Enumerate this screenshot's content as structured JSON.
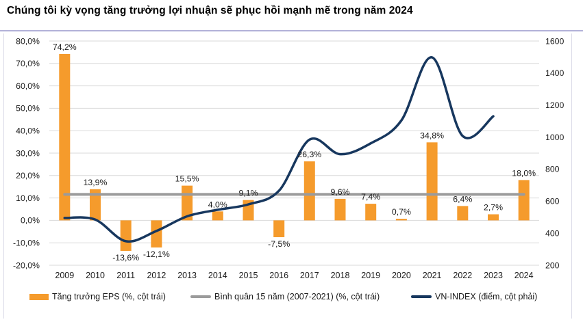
{
  "page": {
    "title": "Chúng tôi kỳ vọng tăng trưởng lợi nhuận sẽ phục hồi mạnh mẽ trong năm 2024"
  },
  "colors": {
    "eps_bar": "#f59b2c",
    "average_line": "#9b9b9b",
    "vnindex_line": "#17375e",
    "gridline": "#d9d9d9",
    "axis_text": "#1a1a1a",
    "divider": "#b2b1d8"
  },
  "chart_data": {
    "type": "bar",
    "subtype": "combo-bar-line-dual-axis",
    "title": "Chúng tôi kỳ vọng tăng trưởng lợi nhuận sẽ phục hồi mạnh mẽ trong năm 2024",
    "categories": [
      "2009",
      "2010",
      "2011",
      "2012",
      "2013",
      "2014",
      "2015",
      "2016",
      "2017",
      "2018",
      "2019",
      "2020",
      "2021",
      "2022",
      "2023",
      "2024"
    ],
    "series": [
      {
        "name": "Tăng trưởng EPS (%, cột trái)",
        "type": "bar",
        "axis": "left",
        "values": [
          74.2,
          13.9,
          -13.6,
          -12.1,
          15.5,
          4.0,
          9.1,
          -7.5,
          26.3,
          9.6,
          7.4,
          0.7,
          34.8,
          6.4,
          2.7,
          18.0
        ],
        "labels": [
          "74,2%",
          "13,9%",
          "-13,6%",
          "-12,1%",
          "15,5%",
          "4,0%",
          "9,1%",
          "-7,5%",
          "26,3%",
          "9,6%",
          "7,4%",
          "0,7%",
          "34,8%",
          "6,4%",
          "2,7%",
          "18,0%"
        ]
      },
      {
        "name": "Bình quân 15 năm (2007-2021) (%, cột trái)",
        "type": "horizontal-average-line",
        "axis": "left",
        "value": 11.6
      },
      {
        "name": "VN-INDEX (điểm, cột phải)",
        "type": "smooth-line",
        "axis": "right",
        "categories": [
          "2009",
          "2010",
          "2011",
          "2012",
          "2013",
          "2014",
          "2015",
          "2016",
          "2017",
          "2018",
          "2019",
          "2020",
          "2021",
          "2022",
          "2023"
        ],
        "values": [
          495,
          485,
          350,
          414,
          505,
          546,
          580,
          665,
          984,
          893,
          961,
          1104,
          1498,
          1007,
          1130
        ]
      }
    ],
    "left_axis": {
      "min": -20,
      "max": 80,
      "tick_step": 10,
      "unit": "%",
      "tick_labels": [
        "80,0%",
        "70,0%",
        "60,0%",
        "50,0%",
        "40,0%",
        "30,0%",
        "20,0%",
        "10,0%",
        "0,0%",
        "-10,0%",
        "-20,0%"
      ]
    },
    "right_axis": {
      "min": 200,
      "max": 1600,
      "tick_step": 200,
      "tick_labels": [
        "1600",
        "1400",
        "1200",
        "1000",
        "800",
        "600",
        "400",
        "200"
      ]
    },
    "grid": "horizontal",
    "legend_position": "bottom",
    "legend": [
      "Tăng trưởng EPS (%, cột trái)",
      "Bình quân 15 năm (2007-2021) (%, cột trái)",
      "VN-INDEX (điểm, cột phải)"
    ]
  }
}
